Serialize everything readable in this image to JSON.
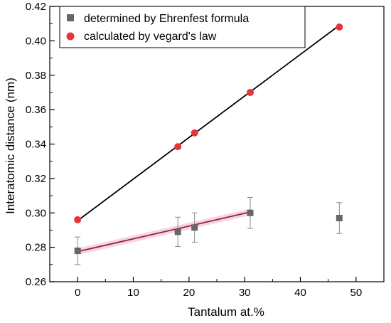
{
  "chart_data": {
    "type": "scatter",
    "xlabel": "Tantalum at.%",
    "ylabel": "Interatomic distance (nm)",
    "xlim": [
      -5,
      55
    ],
    "ylim": [
      0.26,
      0.42
    ],
    "xticks": [
      0,
      10,
      20,
      30,
      40,
      50
    ],
    "yticks": [
      0.26,
      0.28,
      0.3,
      0.32,
      0.34,
      0.36,
      0.38,
      0.4,
      0.42
    ],
    "x_tick_labels": [
      "0",
      "10",
      "20",
      "30",
      "40",
      "50"
    ],
    "y_tick_labels": [
      "0.26",
      "0.28",
      "0.30",
      "0.32",
      "0.34",
      "0.36",
      "0.38",
      "0.40",
      "0.42"
    ],
    "grid": false,
    "legend_position": "top-left",
    "series": [
      {
        "name": "determined by Ehrenfest formula",
        "marker": "square",
        "color": "#666666",
        "x": [
          0,
          18,
          21,
          31,
          47
        ],
        "y": [
          0.278,
          0.289,
          0.2915,
          0.3,
          0.297
        ],
        "error": [
          0.008,
          0.0085,
          0.0085,
          0.009,
          0.009
        ]
      },
      {
        "name": "calculated by vegard's law",
        "marker": "circle",
        "color": "#e8333a",
        "x": [
          0,
          18,
          21,
          31,
          47
        ],
        "y": [
          0.296,
          0.3385,
          0.3465,
          0.37,
          0.408
        ]
      }
    ],
    "fit_lines": [
      {
        "color": "#000000",
        "x": [
          0,
          47
        ],
        "y": [
          0.2955,
          0.409
        ]
      },
      {
        "color": "#8b2a1e",
        "band_color": "#f7c6e6",
        "x": [
          0,
          31
        ],
        "y": [
          0.2775,
          0.3005
        ]
      }
    ]
  }
}
